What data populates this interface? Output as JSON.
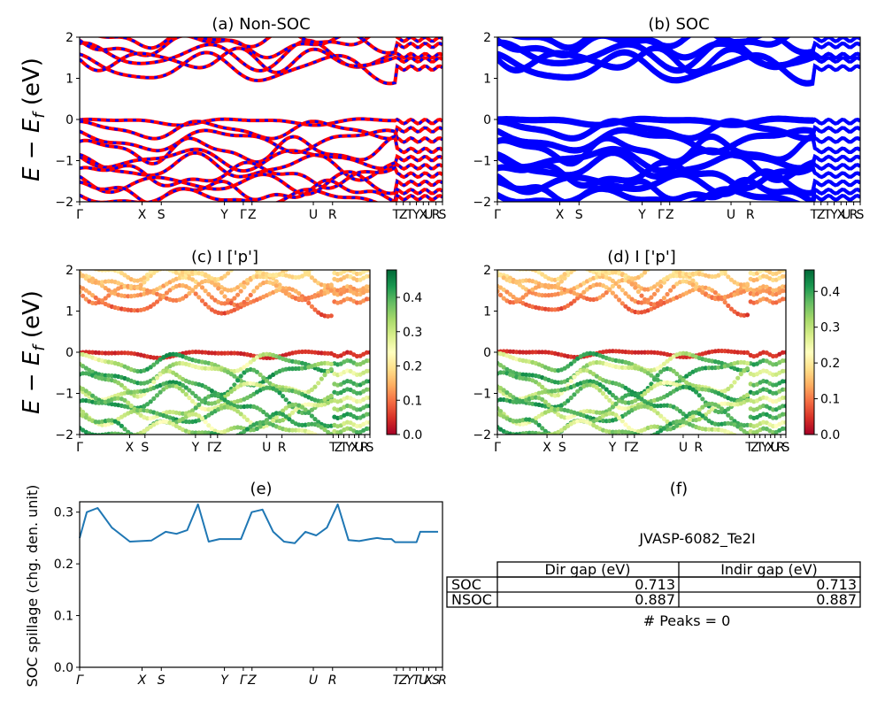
{
  "chart_data": [
    {
      "id": "a",
      "type": "line",
      "title": "(a) Non-SOC",
      "ylabel": "E − E_f (eV)",
      "ylim": [
        -2,
        2
      ],
      "yticks": [
        -2,
        -1,
        0,
        1,
        2
      ],
      "xtick_labels": [
        "Γ",
        "X",
        "S",
        "Y",
        "Γ",
        "Z",
        "U",
        "R",
        "T",
        "Z",
        "T",
        "Y",
        "X",
        "U",
        "R",
        "S"
      ],
      "series": [
        {
          "color": "#ff0000",
          "style": "solid"
        },
        {
          "color": "#0000ff",
          "style": "dashed"
        }
      ],
      "grid": false
    },
    {
      "id": "b",
      "type": "line",
      "title": "(b) SOC",
      "ylim": [
        -2,
        2
      ],
      "yticks": [
        -2,
        -1,
        0,
        1,
        2
      ],
      "xtick_labels": [
        "Γ",
        "X",
        "S",
        "Y",
        "Γ",
        "Z",
        "U",
        "R",
        "T",
        "Z",
        "T",
        "Y",
        "X",
        "U",
        "R",
        "S"
      ],
      "series": [
        {
          "color": "#0000ff",
          "style": "solid"
        }
      ],
      "grid": false
    },
    {
      "id": "c",
      "type": "scatter",
      "title": "(c)  I ['p']",
      "ylabel": "E − E_f (eV)",
      "ylim": [
        -2,
        2
      ],
      "yticks": [
        -2,
        -1,
        0,
        1,
        2
      ],
      "xtick_labels": [
        "Γ",
        "X",
        "S",
        "Y",
        "Γ",
        "Z",
        "U",
        "R",
        "T",
        "Z",
        "T",
        "Y",
        "X",
        "U",
        "R",
        "S"
      ],
      "colormap": "RdYlGn",
      "colorbar": {
        "min": 0.0,
        "max": 0.48,
        "ticks": [
          "0.0",
          "0.1",
          "0.2",
          "0.3",
          "0.4"
        ]
      },
      "grid": false
    },
    {
      "id": "d",
      "type": "scatter",
      "title": "(d) I ['p']",
      "ylim": [
        -2,
        2
      ],
      "yticks": [
        -2,
        -1,
        0,
        1,
        2
      ],
      "xtick_labels": [
        "Γ",
        "X",
        "S",
        "Y",
        "Γ",
        "Z",
        "U",
        "R",
        "T",
        "Z",
        "T",
        "Y",
        "X",
        "U",
        "R",
        "S"
      ],
      "colormap": "RdYlGn",
      "colorbar": {
        "min": 0.0,
        "max": 0.46,
        "ticks": [
          "0.0",
          "0.1",
          "0.2",
          "0.3",
          "0.4"
        ]
      },
      "grid": false
    },
    {
      "id": "e",
      "type": "line",
      "title": "(e)",
      "ylabel": "SOC spillage (chg. den. unit)",
      "ylim": [
        0,
        0.32
      ],
      "yticks": [
        "0.0",
        "0.1",
        "0.2",
        "0.3"
      ],
      "xtick_labels": [
        "Γ",
        "X",
        "S",
        "Y",
        "Γ",
        "Z",
        "U",
        "R",
        "T",
        "Z",
        "Y",
        "T",
        "U",
        "X",
        "S",
        "R"
      ],
      "series": [
        {
          "color": "#1f77b4",
          "x": [
            0,
            0.02,
            0.05,
            0.09,
            0.14,
            0.2,
            0.24,
            0.27,
            0.3,
            0.33,
            0.36,
            0.39,
            0.42,
            0.45,
            0.48,
            0.51,
            0.54,
            0.57,
            0.6,
            0.63,
            0.66,
            0.69,
            0.72,
            0.75,
            0.78,
            0.81,
            0.83,
            0.85,
            0.87,
            0.88,
            0.89,
            0.9,
            0.91,
            0.94,
            0.95,
            0.97,
            1.0
          ],
          "y": [
            0.25,
            0.3,
            0.308,
            0.27,
            0.243,
            0.245,
            0.262,
            0.258,
            0.265,
            0.315,
            0.243,
            0.248,
            0.248,
            0.248,
            0.3,
            0.305,
            0.262,
            0.243,
            0.24,
            0.262,
            0.255,
            0.27,
            0.315,
            0.246,
            0.244,
            0.248,
            0.25,
            0.248,
            0.248,
            0.242,
            0.242,
            0.242,
            0.242,
            0.242,
            0.262,
            0.262,
            0.262
          ]
        }
      ],
      "grid": false
    }
  ],
  "table": {
    "title": "(f)",
    "name": "JVASP-6082_Te2I",
    "headers": [
      "",
      "Dir gap (eV)",
      "Indir gap (eV)"
    ],
    "rows": [
      [
        "SOC",
        "0.713",
        "0.713"
      ],
      [
        "NSOC",
        "0.887",
        "0.887"
      ]
    ],
    "peaks": "# Peaks = 0"
  }
}
